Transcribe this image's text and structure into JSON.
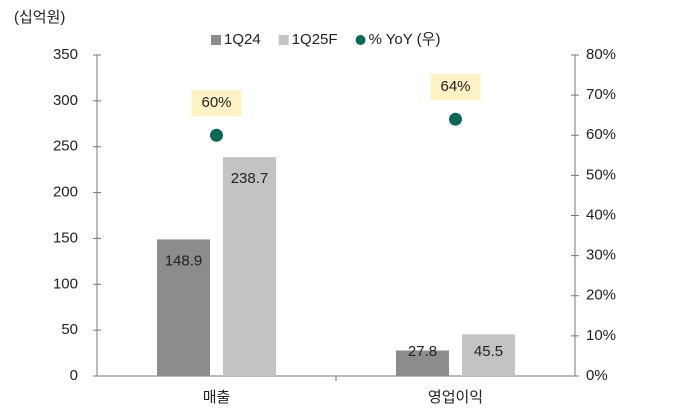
{
  "chart_data": {
    "type": "bar",
    "unit_label": "(십억원)",
    "categories": [
      "매출",
      "영업이익"
    ],
    "series": [
      {
        "name": "1Q24",
        "color": "#8c8c8c",
        "values": [
          148.9,
          27.8
        ]
      },
      {
        "name": "1Q25F",
        "color": "#c3c3c3",
        "values": [
          238.7,
          45.5
        ]
      },
      {
        "name": "% YoY (우)",
        "color": "#0e6655",
        "type": "scatter",
        "axis": "y2",
        "values": [
          60,
          64
        ],
        "value_labels": [
          "60%",
          "64%"
        ]
      }
    ],
    "ylim": [
      0,
      350
    ],
    "yticks": [
      0,
      50,
      100,
      150,
      200,
      250,
      300,
      350
    ],
    "y2lim": [
      0,
      80
    ],
    "y2ticks": [
      {
        "value": 0,
        "label": "0%"
      },
      {
        "value": 10,
        "label": "10%"
      },
      {
        "value": 20,
        "label": "20%"
      },
      {
        "value": 30,
        "label": "30%"
      },
      {
        "value": 40,
        "label": "40%"
      },
      {
        "value": 50,
        "label": "50%"
      },
      {
        "value": 60,
        "label": "60%"
      },
      {
        "value": 70,
        "label": "70%"
      },
      {
        "value": 80,
        "label": "80%"
      }
    ],
    "legend": "top"
  }
}
